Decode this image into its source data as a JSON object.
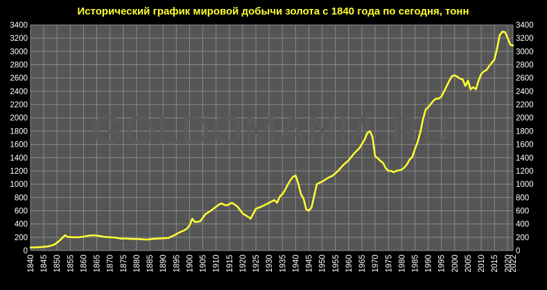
{
  "colors": {
    "background": "#000000",
    "plot_background": "#555555",
    "grid": "#8a8a8a",
    "line": "#ffff33",
    "title": "#ffff33",
    "tick_text": "#ffffff",
    "watermark": "#6a6a6a"
  },
  "watermark": "GOLDOMANIA.RU",
  "chart_data": {
    "type": "line",
    "title": "Исторический график мировой добычи золота с 1840 года по сегодня, тонн",
    "xlabel": "",
    "ylabel": "",
    "xlim": [
      1840,
      2022
    ],
    "ylim": [
      0,
      3400
    ],
    "grid": true,
    "legend": "none",
    "y_ticks_left": [
      "0",
      "200",
      "400",
      "600",
      "800",
      "1000",
      "1200",
      "1400",
      "1600",
      "1800",
      "2000",
      "2200",
      "2400",
      "2600",
      "2800",
      "3000",
      "3200",
      "3400"
    ],
    "y_ticks_right": [
      "0",
      "200",
      "400",
      "600",
      "800",
      "1000",
      "1200",
      "1400",
      "1600",
      "1800",
      "2000",
      "2200",
      "2400",
      "2600",
      "2800",
      "3000",
      "3200",
      "3400"
    ],
    "x_ticks": [
      "1840",
      "1845",
      "1850",
      "1855",
      "1860",
      "1865",
      "1870",
      "1875",
      "1880",
      "1885",
      "1890",
      "1895",
      "1900",
      "1905",
      "1910",
      "1915",
      "1920",
      "1925",
      "1930",
      "1935",
      "1940",
      "1945",
      "1950",
      "1955",
      "1960",
      "1965",
      "1970",
      "1975",
      "1980",
      "1985",
      "1990",
      "1995",
      "2000",
      "2005",
      "2010",
      "2015",
      "2020",
      "2022"
    ],
    "series": [
      {
        "x": [
          1840,
          1843,
          1845,
          1847,
          1849,
          1851,
          1853,
          1854,
          1856,
          1858,
          1860,
          1862,
          1864,
          1866,
          1868,
          1870,
          1872,
          1874,
          1876,
          1878,
          1880,
          1882,
          1884,
          1886,
          1888,
          1890,
          1892,
          1894,
          1896,
          1898,
          1899,
          1900,
          1901,
          1902,
          1904,
          1906,
          1908,
          1910,
          1911,
          1912,
          1913,
          1914,
          1915,
          1916,
          1918,
          1920,
          1922,
          1923,
          1925,
          1927,
          1929,
          1931,
          1932,
          1933,
          1934,
          1935,
          1936,
          1937,
          1938,
          1939,
          1940,
          1941,
          1942,
          1943,
          1944,
          1945,
          1946,
          1948,
          1950,
          1952,
          1954,
          1956,
          1958,
          1960,
          1962,
          1964,
          1966,
          1967,
          1968,
          1969,
          1970,
          1971,
          1972,
          1973,
          1974,
          1975,
          1976,
          1977,
          1978,
          1979,
          1980,
          1981,
          1982,
          1983,
          1984,
          1985,
          1986,
          1987,
          1988,
          1989,
          1990,
          1991,
          1992,
          1993,
          1994,
          1995,
          1996,
          1997,
          1998,
          1999,
          2000,
          2001,
          2002,
          2003,
          2004,
          2005,
          2006,
          2007,
          2008,
          2009,
          2010,
          2011,
          2012,
          2013,
          2014,
          2015,
          2016,
          2017,
          2018,
          2019,
          2020,
          2021,
          2022
        ],
        "y": [
          45,
          50,
          55,
          65,
          90,
          150,
          230,
          205,
          200,
          200,
          210,
          225,
          230,
          220,
          205,
          200,
          195,
          180,
          180,
          175,
          175,
          170,
          165,
          175,
          180,
          185,
          190,
          225,
          270,
          305,
          330,
          380,
          480,
          430,
          440,
          550,
          600,
          660,
          690,
          710,
          690,
          680,
          700,
          720,
          665,
          560,
          510,
          480,
          630,
          660,
          700,
          740,
          760,
          720,
          810,
          850,
          910,
          990,
          1060,
          1110,
          1130,
          1010,
          850,
          780,
          620,
          600,
          650,
          1000,
          1040,
          1090,
          1130,
          1200,
          1290,
          1360,
          1460,
          1540,
          1670,
          1770,
          1800,
          1710,
          1420,
          1390,
          1350,
          1320,
          1240,
          1200,
          1200,
          1180,
          1200,
          1210,
          1220,
          1250,
          1300,
          1370,
          1410,
          1530,
          1630,
          1780,
          1970,
          2120,
          2160,
          2210,
          2260,
          2290,
          2290,
          2320,
          2400,
          2480,
          2560,
          2630,
          2640,
          2620,
          2590,
          2580,
          2480,
          2560,
          2430,
          2460,
          2430,
          2560,
          2660,
          2700,
          2720,
          2780,
          2830,
          2880,
          3050,
          3250,
          3300,
          3290,
          3200,
          3100,
          3090
        ]
      }
    ]
  }
}
